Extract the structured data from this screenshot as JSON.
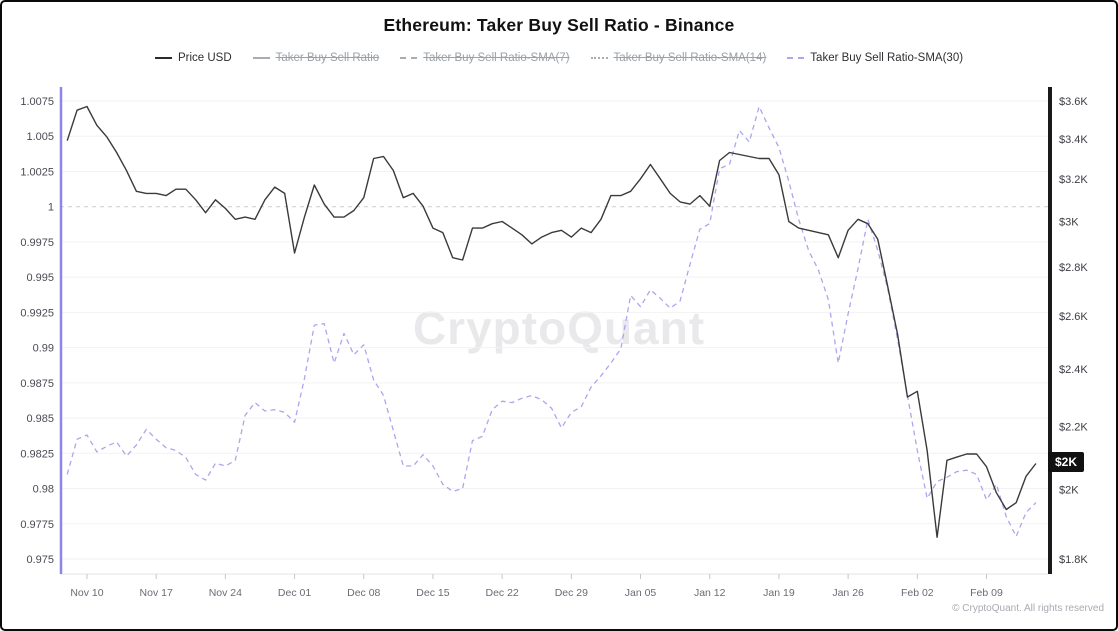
{
  "title": "Ethereum: Taker Buy Sell Ratio - Binance",
  "watermark": "CryptoQuant",
  "copyright": "© CryptoQuant. All rights reserved",
  "price_badge": "$2K",
  "colors": {
    "price_line": "#3a3a3a",
    "sma30_line": "#aba6ee",
    "left_spine": "#8d86e8",
    "right_spine": "#1a1a1a",
    "grid": "#f2f2f2",
    "unity_line": "#d4d4d4",
    "badge_bg": "#111111",
    "disabled_legend": "#9aa0a6"
  },
  "legend": {
    "items": [
      {
        "label": "Price USD",
        "active": true,
        "marker": "solid-dark"
      },
      {
        "label": "Taker Buy Sell Ratio",
        "active": false,
        "marker": "solid-gray"
      },
      {
        "label": "Taker Buy Sell Ratio-SMA(7)",
        "active": false,
        "marker": "dash-gray"
      },
      {
        "label": "Taker Buy Sell Ratio-SMA(14)",
        "active": false,
        "marker": "dot-gray"
      },
      {
        "label": "Taker Buy Sell Ratio-SMA(30)",
        "active": true,
        "marker": "dash-purple"
      }
    ]
  },
  "chart_data": {
    "type": "line",
    "title": "Ethereum: Taker Buy Sell Ratio - Binance",
    "x_start_label": "Nov 08",
    "x_end_label": "Feb 14",
    "points_interval": "daily",
    "n_points": 99,
    "x_axis": {
      "tick_labels": [
        "Nov 10",
        "Nov 17",
        "Nov 24",
        "Dec 01",
        "Dec 08",
        "Dec 15",
        "Dec 22",
        "Dec 29",
        "Jan 05",
        "Jan 12",
        "Jan 19",
        "Jan 26",
        "Feb 02",
        "Feb 09"
      ],
      "tick_days": [
        2,
        9,
        16,
        23,
        30,
        37,
        44,
        51,
        58,
        65,
        72,
        79,
        86,
        93
      ]
    },
    "left_axis": {
      "label": "Taker Buy Sell Ratio",
      "scale": "linear",
      "range": [
        0.975,
        1.0075
      ],
      "tick_labels": [
        "1.0075",
        "1.005",
        "1.0025",
        "1",
        "0.9975",
        "0.995",
        "0.9925",
        "0.99",
        "0.9875",
        "0.985",
        "0.9825",
        "0.98",
        "0.9775",
        "0.975"
      ],
      "tick_values": [
        1.0075,
        1.005,
        1.0025,
        1,
        0.9975,
        0.995,
        0.9925,
        0.99,
        0.9875,
        0.985,
        0.9825,
        0.98,
        0.9775,
        0.975
      ]
    },
    "right_axis": {
      "label": "Price USD",
      "scale": "log",
      "range_thousands_usd": [
        1.8,
        3.6
      ],
      "tick_labels": [
        "$3.6K",
        "$3.4K",
        "$3.2K",
        "$3K",
        "$2.8K",
        "$2.6K",
        "$2.4K",
        "$2.2K",
        "$2K",
        "$1.8K"
      ],
      "tick_values": [
        3.6,
        3.4,
        3.2,
        3,
        2.8,
        2.6,
        2.4,
        2.2,
        2,
        1.8
      ]
    },
    "annotations": {
      "baseline_ratio": 1.0,
      "last_price_label": "$2K"
    },
    "disabled_series": [
      "Taker Buy Sell Ratio",
      "Taker Buy Sell Ratio-SMA(7)",
      "Taker Buy Sell Ratio-SMA(14)"
    ],
    "series": [
      {
        "name": "Price USD",
        "axis": "right",
        "unit": "USD thousands",
        "style": "solid",
        "color": "#3a3a3a",
        "values": [
          3.39,
          3.55,
          3.57,
          3.47,
          3.41,
          3.33,
          3.24,
          3.14,
          3.13,
          3.13,
          3.12,
          3.15,
          3.15,
          3.1,
          3.04,
          3.1,
          3.06,
          3.01,
          3.02,
          3.01,
          3.1,
          3.16,
          3.13,
          2.86,
          3.02,
          3.17,
          3.08,
          3.02,
          3.02,
          3.05,
          3.11,
          3.3,
          3.31,
          3.24,
          3.11,
          3.13,
          3.07,
          2.97,
          2.95,
          2.84,
          2.83,
          2.97,
          2.97,
          2.99,
          3.0,
          2.97,
          2.94,
          2.9,
          2.93,
          2.95,
          2.96,
          2.93,
          2.97,
          2.95,
          3.01,
          3.12,
          3.12,
          3.14,
          3.2,
          3.27,
          3.2,
          3.13,
          3.09,
          3.08,
          3.12,
          3.07,
          3.29,
          3.33,
          3.32,
          3.31,
          3.3,
          3.3,
          3.22,
          3.0,
          2.97,
          2.96,
          2.95,
          2.94,
          2.84,
          2.96,
          3.01,
          2.99,
          2.92,
          2.72,
          2.53,
          2.3,
          2.32,
          2.12,
          1.86,
          2.09,
          2.1,
          2.11,
          2.11,
          2.07,
          1.99,
          1.94,
          1.96,
          2.04,
          2.08
        ]
      },
      {
        "name": "Taker Buy Sell Ratio-SMA(30)",
        "axis": "left",
        "unit": "ratio",
        "style": "dashed",
        "color": "#aba6ee",
        "values": [
          0.981,
          0.9835,
          0.9838,
          0.9826,
          0.983,
          0.9833,
          0.9823,
          0.9831,
          0.9842,
          0.9835,
          0.9829,
          0.9827,
          0.9822,
          0.981,
          0.9806,
          0.9818,
          0.9816,
          0.982,
          0.9852,
          0.9861,
          0.9855,
          0.9856,
          0.9854,
          0.9847,
          0.9878,
          0.9916,
          0.9917,
          0.9889,
          0.991,
          0.9895,
          0.9902,
          0.9877,
          0.9866,
          0.9841,
          0.9816,
          0.9816,
          0.9824,
          0.9816,
          0.9803,
          0.9798,
          0.98,
          0.9834,
          0.9837,
          0.9856,
          0.9862,
          0.9861,
          0.9864,
          0.9866,
          0.9863,
          0.9857,
          0.9843,
          0.9854,
          0.9858,
          0.9872,
          0.988,
          0.9889,
          0.9899,
          0.9937,
          0.9929,
          0.9941,
          0.9935,
          0.9928,
          0.9933,
          0.9959,
          0.9984,
          0.9988,
          1.0027,
          1.003,
          1.0054,
          1.0046,
          1.0071,
          1.0056,
          1.0042,
          1.0018,
          0.9991,
          0.9969,
          0.9955,
          0.9934,
          0.9889,
          0.9924,
          0.9956,
          0.9991,
          0.9969,
          0.9942,
          0.9906,
          0.9866,
          0.9827,
          0.9793,
          0.9805,
          0.9808,
          0.9812,
          0.9813,
          0.981,
          0.9792,
          0.9803,
          0.978,
          0.9766,
          0.9783,
          0.979
        ]
      }
    ]
  }
}
